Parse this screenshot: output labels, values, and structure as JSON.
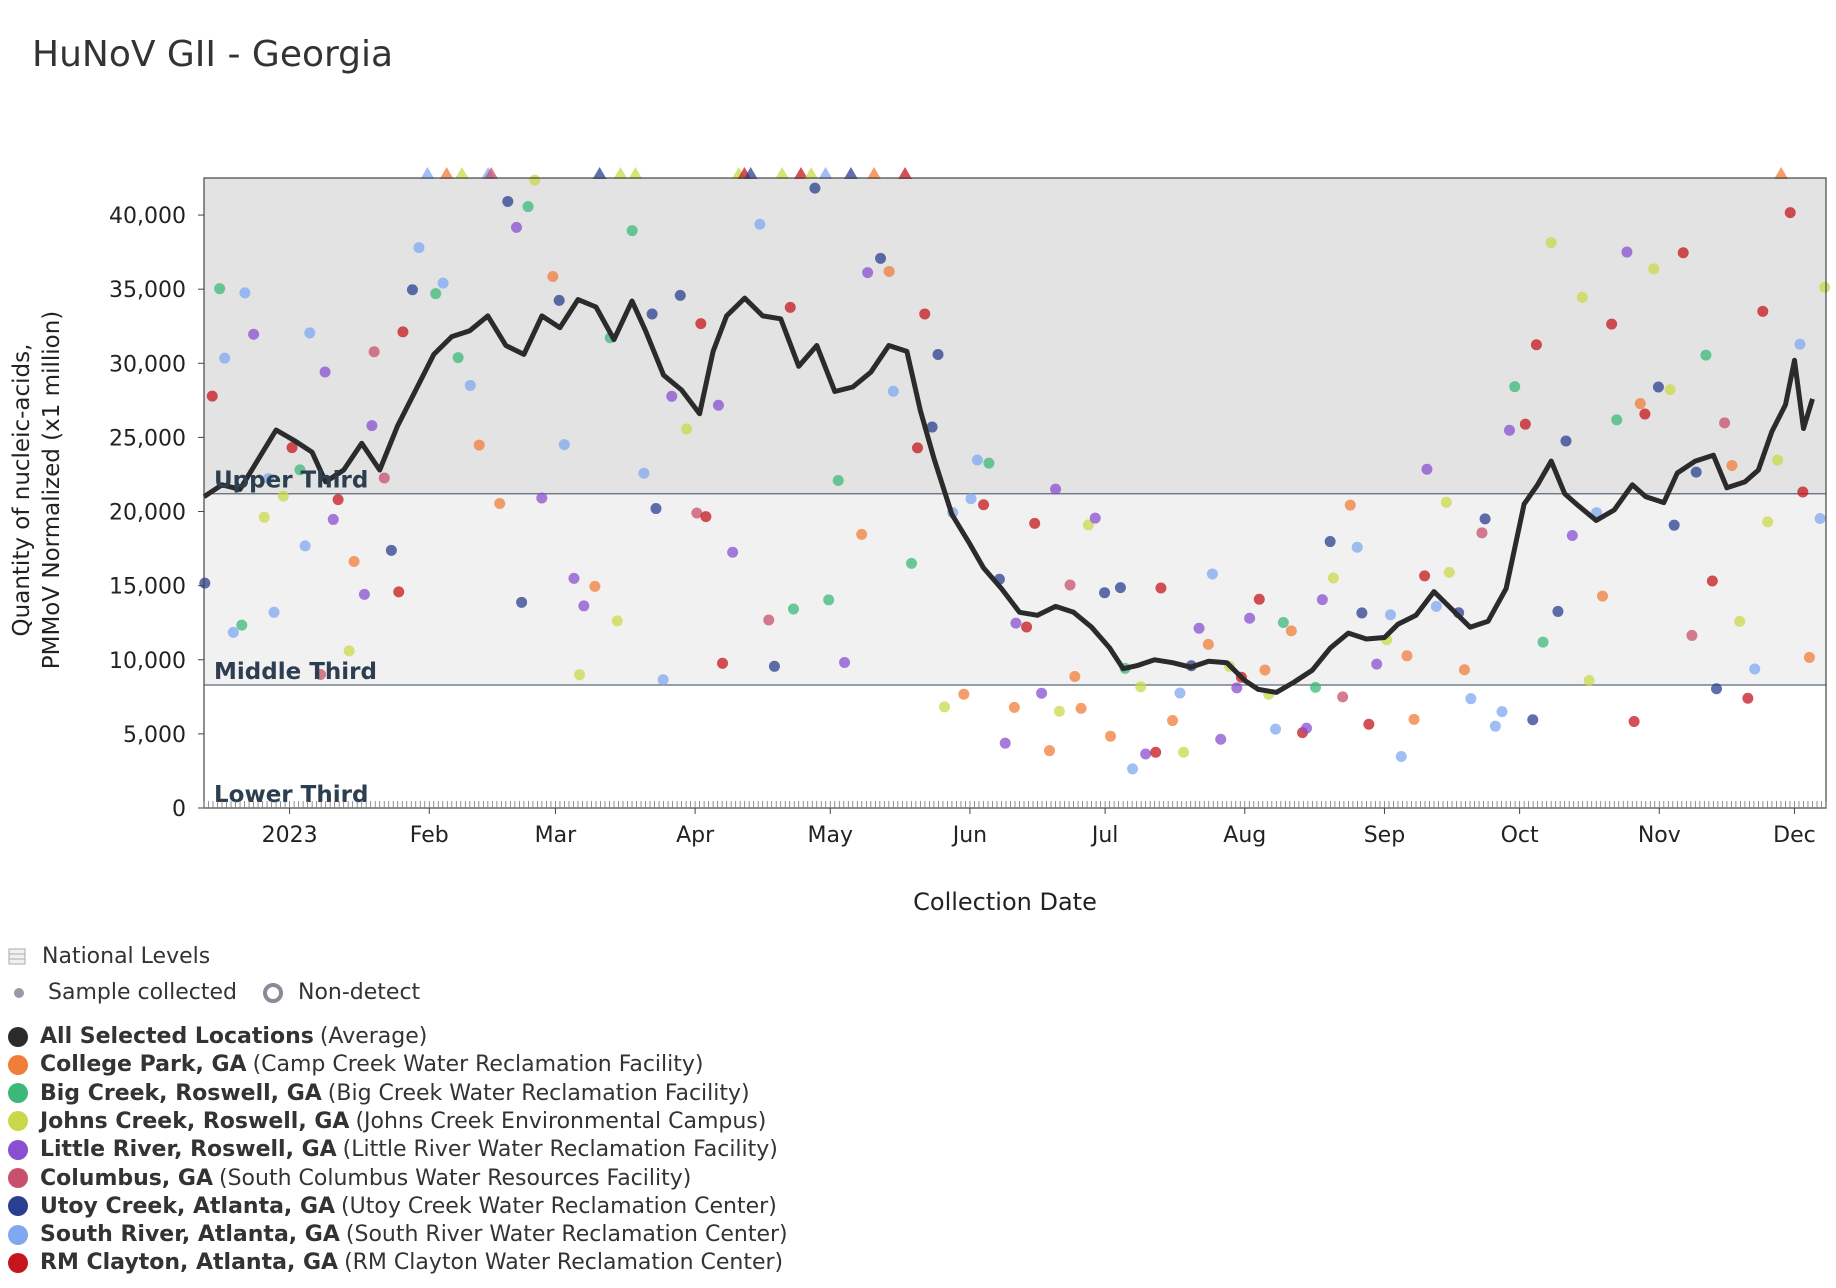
{
  "title": "HuNoV GII - Georgia",
  "chart_data": {
    "type": "scatter",
    "xlabel": "Collection Date",
    "ylabel_lines": [
      "Quantity of nucleic-acids,",
      "PMMoV Normalized (x1 million)"
    ],
    "x_range": [
      "2022-12-13",
      "2023-12-08"
    ],
    "ylim": [
      0,
      42500
    ],
    "y_ticks": [
      0,
      5000,
      10000,
      15000,
      20000,
      25000,
      30000,
      35000,
      40000
    ],
    "y_tick_labels": [
      "0",
      "5,000",
      "10,000",
      "15,000",
      "20,000",
      "25,000",
      "30,000",
      "35,000",
      "40,000"
    ],
    "x_ticks": [
      {
        "date": "2023-01-01",
        "label": "2023"
      },
      {
        "date": "2023-02-01",
        "label": "Feb"
      },
      {
        "date": "2023-03-01",
        "label": "Mar"
      },
      {
        "date": "2023-04-01",
        "label": "Apr"
      },
      {
        "date": "2023-05-01",
        "label": "May"
      },
      {
        "date": "2023-06-01",
        "label": "Jun"
      },
      {
        "date": "2023-07-01",
        "label": "Jul"
      },
      {
        "date": "2023-08-01",
        "label": "Aug"
      },
      {
        "date": "2023-09-01",
        "label": "Sep"
      },
      {
        "date": "2023-10-01",
        "label": "Oct"
      },
      {
        "date": "2023-11-01",
        "label": "Nov"
      },
      {
        "date": "2023-12-01",
        "label": "Dec"
      }
    ],
    "bands": [
      {
        "label": "Upper Third",
        "from": 21200,
        "to": 42500,
        "color": "#e3e3e3"
      },
      {
        "label": "Middle Third",
        "from": 8300,
        "to": 21200,
        "color": "#f1f1f1"
      },
      {
        "label": "Lower Third",
        "from": 0,
        "to": 8300,
        "color": "#ffffff"
      }
    ],
    "grid": false,
    "legend_position": "bottom-left",
    "average_series": {
      "name": "All Selected Locations",
      "color": "#2b2b2b",
      "points": [
        [
          "2022-12-13",
          21000
        ],
        [
          "2022-12-17",
          21800
        ],
        [
          "2022-12-21",
          21500
        ],
        [
          "2022-12-25",
          23500
        ],
        [
          "2022-12-29",
          25500
        ],
        [
          "2023-01-02",
          24800
        ],
        [
          "2023-01-06",
          24000
        ],
        [
          "2023-01-09",
          22000
        ],
        [
          "2023-01-13",
          22800
        ],
        [
          "2023-01-17",
          24600
        ],
        [
          "2023-01-21",
          22800
        ],
        [
          "2023-01-25",
          25800
        ],
        [
          "2023-01-29",
          28200
        ],
        [
          "2023-02-02",
          30600
        ],
        [
          "2023-02-06",
          31800
        ],
        [
          "2023-02-10",
          32200
        ],
        [
          "2023-02-14",
          33200
        ],
        [
          "2023-02-18",
          31200
        ],
        [
          "2023-02-22",
          30600
        ],
        [
          "2023-02-26",
          33200
        ],
        [
          "2023-03-02",
          32400
        ],
        [
          "2023-03-06",
          34300
        ],
        [
          "2023-03-10",
          33800
        ],
        [
          "2023-03-14",
          31600
        ],
        [
          "2023-03-18",
          34200
        ],
        [
          "2023-03-21",
          32200
        ],
        [
          "2023-03-25",
          29200
        ],
        [
          "2023-03-29",
          28200
        ],
        [
          "2023-04-02",
          26600
        ],
        [
          "2023-04-05",
          30800
        ],
        [
          "2023-04-08",
          33200
        ],
        [
          "2023-04-12",
          34400
        ],
        [
          "2023-04-16",
          33200
        ],
        [
          "2023-04-20",
          33000
        ],
        [
          "2023-04-24",
          29800
        ],
        [
          "2023-04-28",
          31200
        ],
        [
          "2023-05-02",
          28100
        ],
        [
          "2023-05-06",
          28400
        ],
        [
          "2023-05-10",
          29400
        ],
        [
          "2023-05-14",
          31200
        ],
        [
          "2023-05-18",
          30800
        ],
        [
          "2023-05-21",
          26800
        ],
        [
          "2023-05-24",
          23600
        ],
        [
          "2023-05-28",
          19800
        ],
        [
          "2023-06-01",
          17800
        ],
        [
          "2023-06-04",
          16200
        ],
        [
          "2023-06-08",
          14800
        ],
        [
          "2023-06-12",
          13200
        ],
        [
          "2023-06-16",
          13000
        ],
        [
          "2023-06-20",
          13600
        ],
        [
          "2023-06-24",
          13200
        ],
        [
          "2023-06-28",
          12200
        ],
        [
          "2023-07-02",
          10800
        ],
        [
          "2023-07-05",
          9400
        ],
        [
          "2023-07-08",
          9600
        ],
        [
          "2023-07-12",
          10000
        ],
        [
          "2023-07-16",
          9800
        ],
        [
          "2023-07-20",
          9500
        ],
        [
          "2023-07-24",
          9900
        ],
        [
          "2023-07-28",
          9800
        ],
        [
          "2023-08-01",
          8600
        ],
        [
          "2023-08-04",
          8000
        ],
        [
          "2023-08-08",
          7800
        ],
        [
          "2023-08-12",
          8500
        ],
        [
          "2023-08-16",
          9300
        ],
        [
          "2023-08-20",
          10800
        ],
        [
          "2023-08-24",
          11800
        ],
        [
          "2023-08-28",
          11400
        ],
        [
          "2023-09-01",
          11500
        ],
        [
          "2023-09-04",
          12400
        ],
        [
          "2023-09-08",
          13000
        ],
        [
          "2023-09-12",
          14600
        ],
        [
          "2023-09-16",
          13400
        ],
        [
          "2023-09-20",
          12200
        ],
        [
          "2023-09-24",
          12600
        ],
        [
          "2023-09-28",
          14800
        ],
        [
          "2023-10-02",
          20500
        ],
        [
          "2023-10-05",
          21800
        ],
        [
          "2023-10-08",
          23400
        ],
        [
          "2023-10-11",
          21200
        ],
        [
          "2023-10-14",
          20400
        ],
        [
          "2023-10-18",
          19400
        ],
        [
          "2023-10-22",
          20100
        ],
        [
          "2023-10-26",
          21800
        ],
        [
          "2023-10-29",
          21000
        ],
        [
          "2023-11-02",
          20600
        ],
        [
          "2023-11-05",
          22600
        ],
        [
          "2023-11-09",
          23400
        ],
        [
          "2023-11-13",
          23800
        ],
        [
          "2023-11-16",
          21600
        ],
        [
          "2023-11-20",
          22000
        ],
        [
          "2023-11-23",
          22800
        ],
        [
          "2023-11-26",
          25400
        ],
        [
          "2023-11-29",
          27200
        ],
        [
          "2023-12-01",
          30200
        ],
        [
          "2023-12-03",
          25600
        ],
        [
          "2023-12-05",
          27600
        ]
      ]
    },
    "sites": [
      {
        "name": "College Park, GA",
        "facility": "(Camp Creek Water Reclamation Facility)",
        "color": "#f07d3a"
      },
      {
        "name": "Big Creek, Roswell, GA",
        "facility": "(Big Creek Water Reclamation Facility)",
        "color": "#3cb878"
      },
      {
        "name": "Johns Creek, Roswell, GA",
        "facility": "(Johns Creek Environmental Campus)",
        "color": "#c9d84a"
      },
      {
        "name": "Little River, Roswell, GA",
        "facility": "(Little River Water Reclamation Facility)",
        "color": "#8a4fd0"
      },
      {
        "name": "Columbus, GA",
        "facility": "(South Columbus Water Resources Facility)",
        "color": "#c8506c"
      },
      {
        "name": "Utoy Creek, Atlanta, GA",
        "facility": "(Utoy Creek Water Reclamation Center)",
        "color": "#2a3f8f"
      },
      {
        "name": "South River, Atlanta, GA",
        "facility": "(South River Water Reclamation Center)",
        "color": "#7fa8f0"
      },
      {
        "name": "RM Clayton, Atlanta, GA",
        "facility": "(RM Clayton Water Reclamation Center)",
        "color": "#c4161c"
      }
    ],
    "samples_note": "individual site samples shown as scatter points around the average; values above the axis maximum are shown as triangles at the top edge"
  },
  "legend": {
    "national_levels": "National Levels",
    "sample_collected": "Sample collected",
    "non_detect": "Non-detect",
    "average_name": "All Selected Locations",
    "average_suffix": "(Average)",
    "average_color": "#2b2b2b"
  }
}
